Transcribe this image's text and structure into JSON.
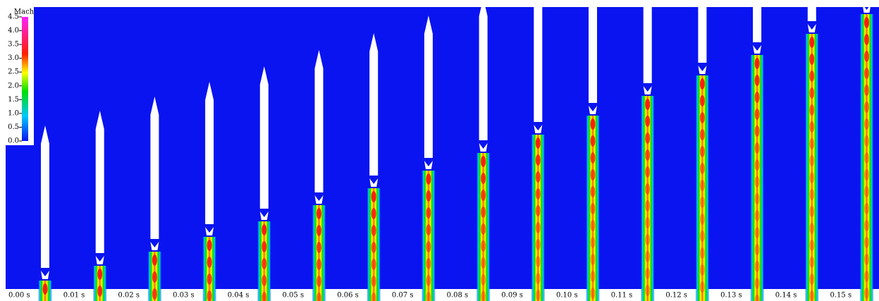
{
  "colorbar": {
    "title": "Mach",
    "ticks": [
      {
        "value": 0,
        "label": "0.0"
      },
      {
        "value": 0.5,
        "label": "0.5"
      },
      {
        "value": 1,
        "label": "1.0"
      },
      {
        "value": 1.5,
        "label": "1.5"
      },
      {
        "value": 2,
        "label": "2.0"
      },
      {
        "value": 2.5,
        "label": "2.5"
      },
      {
        "value": 3,
        "label": "3.0"
      },
      {
        "value": 3.5,
        "label": "3.5"
      },
      {
        "value": 4,
        "label": "4.0"
      },
      {
        "value": 4.5,
        "label": "4.5"
      }
    ]
  },
  "frames": [
    "0.00 s",
    "0.01 s",
    "0.02 s",
    "0.03 s",
    "0.04 s",
    "0.05 s",
    "0.06 s",
    "0.07 s",
    "0.08 s",
    "0.09 s",
    "0.10 s",
    "0.11 s",
    "0.12 s",
    "0.13 s",
    "0.14 s",
    "0.15 s"
  ]
}
